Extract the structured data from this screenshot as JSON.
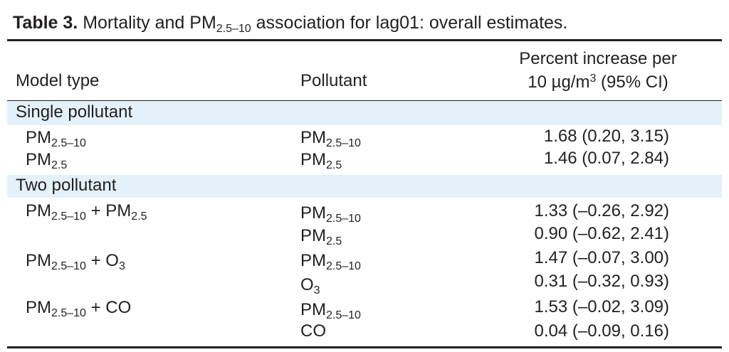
{
  "title": {
    "label": "Table 3.",
    "text_before": "Mortality and PM",
    "text_sub": "2.5–10",
    "text_after": " association for lag01: overall estimates."
  },
  "header": {
    "model_type": "Model type",
    "pollutant": "Pollutant",
    "percent_line1": "Percent increase per",
    "percent_line2_pre": "10 µg/m",
    "percent_line2_sup": "3",
    "percent_line2_post": " (95% CI)"
  },
  "sections": [
    {
      "label": "Single pollutant",
      "rows": [
        {
          "model_base": "PM",
          "model_sub": "2.5–10",
          "model_extra": "",
          "model_extra_sub": "",
          "pollutant_base": "PM",
          "pollutant_sub": "2.5–10",
          "value": "1.68 (0.20, 3.15)"
        },
        {
          "model_base": "PM",
          "model_sub": "2.5",
          "model_extra": "",
          "model_extra_sub": "",
          "pollutant_base": "PM",
          "pollutant_sub": "2.5",
          "value": "1.46 (0.07, 2.84)"
        }
      ]
    },
    {
      "label": "Two pollutant",
      "rows": [
        {
          "model_base": "PM",
          "model_sub": "2.5–10",
          "model_extra": " + PM",
          "model_extra_sub": "2.5",
          "pollutant_base": "PM",
          "pollutant_sub": "2.5–10",
          "value": "1.33 (–0.26, 2.92)"
        },
        {
          "model_base": "",
          "model_sub": "",
          "model_extra": "",
          "model_extra_sub": "",
          "pollutant_base": "PM",
          "pollutant_sub": "2.5",
          "value": "0.90 (–0.62, 2.41)"
        },
        {
          "model_base": "PM",
          "model_sub": "2.5–10",
          "model_extra": " + O",
          "model_extra_sub": "3",
          "pollutant_base": "PM",
          "pollutant_sub": "2.5–10",
          "value": "1.47 (–0.07, 3.00)"
        },
        {
          "model_base": "",
          "model_sub": "",
          "model_extra": "",
          "model_extra_sub": "",
          "pollutant_base": "O",
          "pollutant_sub": "3",
          "value": "0.31 (–0.32, 0.93)"
        },
        {
          "model_base": "PM",
          "model_sub": "2.5–10",
          "model_extra": " + CO",
          "model_extra_sub": "",
          "pollutant_base": "PM",
          "pollutant_sub": "2.5–10",
          "value": "1.53 (–0.02, 3.09)"
        },
        {
          "model_base": "",
          "model_sub": "",
          "model_extra": "",
          "model_extra_sub": "",
          "pollutant_base": "CO",
          "pollutant_sub": "",
          "value": "0.04 (–0.09, 0.16)"
        }
      ]
    }
  ]
}
